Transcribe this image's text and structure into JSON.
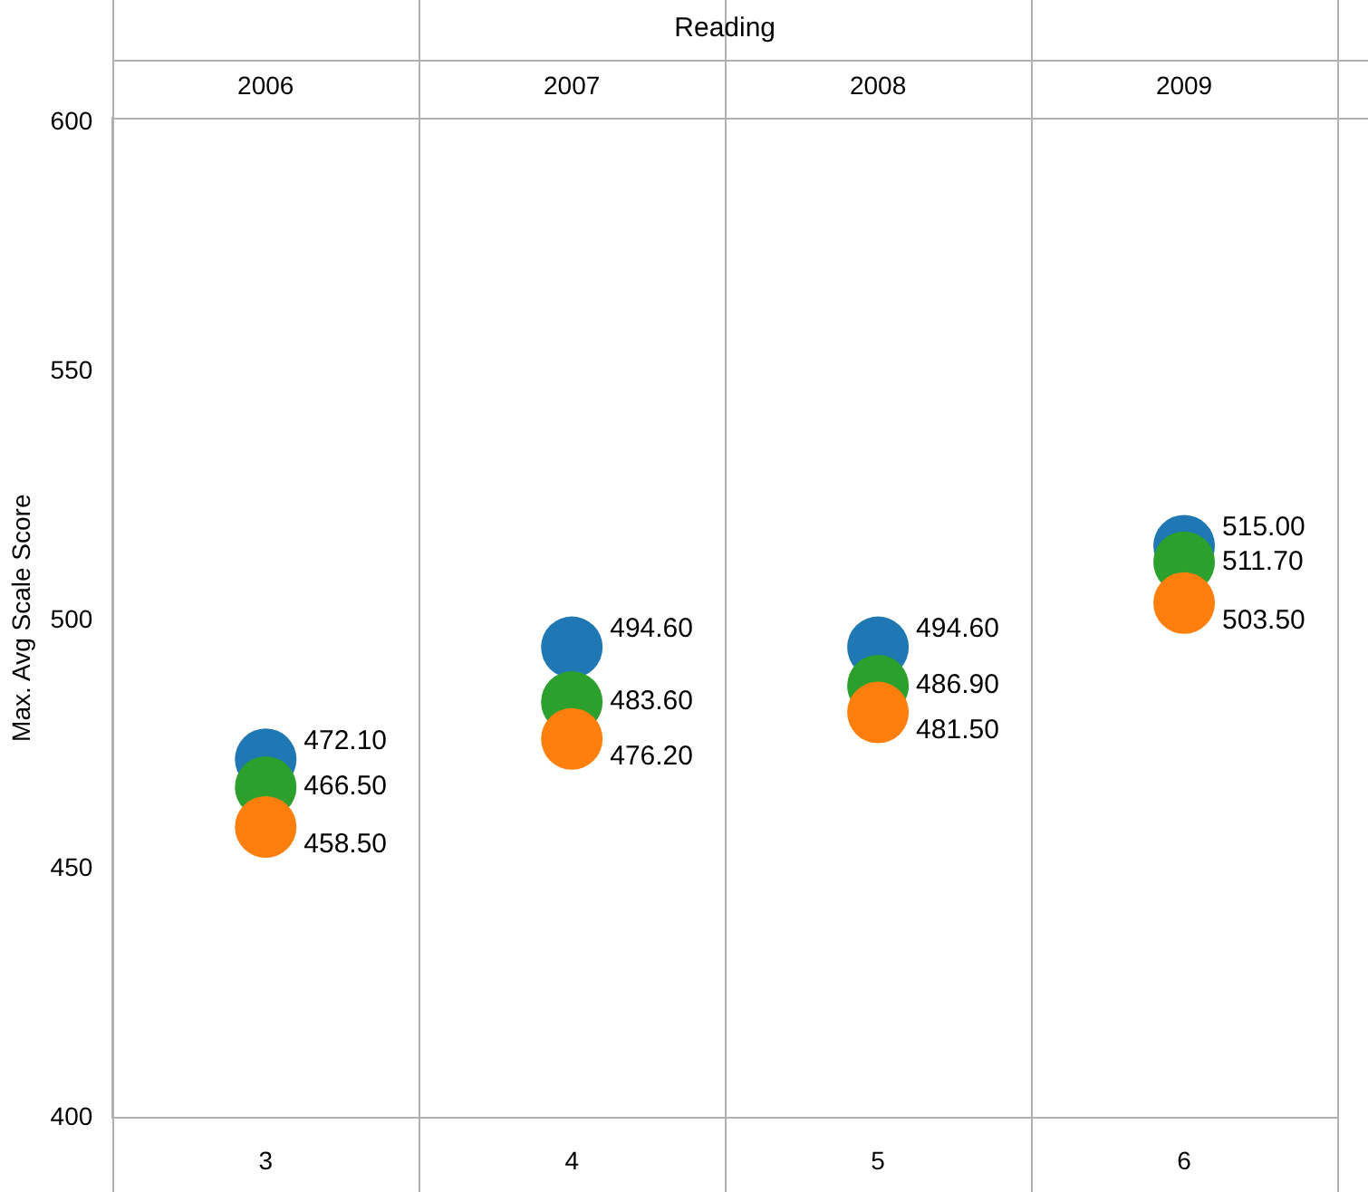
{
  "chart_data": {
    "type": "scatter",
    "title": "Reading",
    "ylabel": "Max. Avg Scale Score",
    "categories": [
      "3",
      "4",
      "5",
      "6"
    ],
    "annotations": [
      "2006",
      "2007",
      "2008",
      "2009"
    ],
    "series": [
      {
        "color": "#ff7f0e",
        "values": [
          458.5,
          476.2,
          481.5,
          503.5
        ],
        "value_labels": [
          "458.50",
          "476.20",
          "481.50",
          "503.50"
        ]
      },
      {
        "color": "#2ca02c",
        "values": [
          466.5,
          483.6,
          486.9,
          511.7
        ],
        "value_labels": [
          "466.50",
          "483.60",
          "486.90",
          "511.70"
        ]
      },
      {
        "color": "#1f77b4",
        "values": [
          472.1,
          494.6,
          494.6,
          515.0
        ],
        "value_labels": [
          "472.10",
          "494.60",
          "494.60",
          "515.00"
        ]
      }
    ],
    "ylim": [
      400,
      601
    ],
    "yticks": [
      400,
      450,
      500,
      550,
      600
    ],
    "grid": "x",
    "marker": "circle",
    "legend": false
  }
}
